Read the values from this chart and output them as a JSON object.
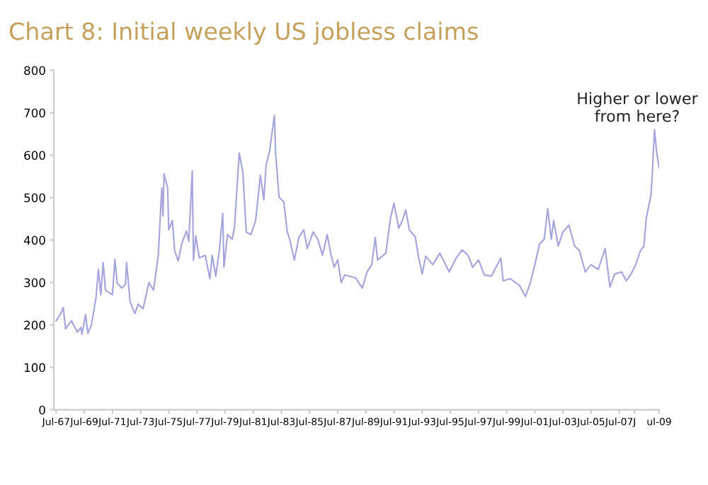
{
  "chart_data": {
    "type": "line",
    "title": "Chart 8: Initial weekly US jobless claims",
    "annotations": [
      "Higher or lower\nfrom here?"
    ],
    "x": [
      "1967-07",
      "1967-11",
      "1968-01",
      "1968-03",
      "1968-08",
      "1969-01",
      "1969-04",
      "1969-05",
      "1969-08",
      "1969-10",
      "1970-01",
      "1970-05",
      "1970-07",
      "1970-09",
      "1970-11",
      "1971-01",
      "1971-07",
      "1971-09",
      "1971-11",
      "1972-03",
      "1972-06",
      "1972-07",
      "1972-10",
      "1973-02",
      "1973-05",
      "1973-09",
      "1974-02",
      "1974-06",
      "1974-10",
      "1975-01",
      "1975-02",
      "1975-03",
      "1975-06",
      "1975-07",
      "1975-10",
      "1975-12",
      "1976-03",
      "1976-06",
      "1976-10",
      "1976-12",
      "1977-03",
      "1977-04",
      "1977-06",
      "1977-09",
      "1978-02",
      "1978-06",
      "1978-08",
      "1978-11",
      "1979-02",
      "1979-05",
      "1979-06",
      "1979-09",
      "1980-01",
      "1980-03",
      "1980-07",
      "1980-10",
      "1981-01",
      "1981-05",
      "1981-09",
      "1982-01",
      "1982-04",
      "1982-06",
      "1982-09",
      "1982-11",
      "1983-01",
      "1983-02",
      "1983-05",
      "1983-09",
      "1983-12",
      "1984-02",
      "1984-06",
      "1984-10",
      "1985-02",
      "1985-05",
      "1985-10",
      "1986-02",
      "1986-06",
      "1986-10",
      "1987-01",
      "1987-04",
      "1987-07",
      "1987-10",
      "1988-01",
      "1988-10",
      "1989-04",
      "1989-08",
      "1989-12",
      "1990-03",
      "1990-05",
      "1990-12",
      "1991-04",
      "1991-07",
      "1991-11",
      "1992-02",
      "1992-05",
      "1992-08",
      "1993-01",
      "1993-04",
      "1993-07",
      "1993-10",
      "1994-04",
      "1994-10",
      "1995-06",
      "1995-12",
      "1996-05",
      "1996-10",
      "1997-02",
      "1997-07",
      "1997-12",
      "1998-06",
      "1999-02",
      "1999-04",
      "1999-10",
      "2000-06",
      "2000-11",
      "2001-03",
      "2001-07",
      "2001-11",
      "2002-03",
      "2002-06",
      "2002-09",
      "2002-11",
      "2003-03",
      "2003-07",
      "2003-12",
      "2004-05",
      "2004-09",
      "2005-02",
      "2005-07",
      "2006-01",
      "2006-07",
      "2006-11",
      "2007-03",
      "2007-09",
      "2008-01",
      "2008-05",
      "2008-09",
      "2009-01",
      "2009-04",
      "2009-06",
      "2009-10",
      "2009-11",
      "2010-01",
      "2010-03",
      "2010-05"
    ],
    "series": [
      {
        "color": "#a7a7dc",
        "values": [
          210,
          227,
          241,
          191,
          210,
          183,
          194,
          178,
          224,
          180,
          200,
          265,
          331,
          271,
          347,
          282,
          271,
          355,
          298,
          287,
          296,
          347,
          254,
          227,
          249,
          238,
          300,
          282,
          364,
          523,
          457,
          556,
          523,
          424,
          446,
          375,
          351,
          391,
          421,
          397,
          563,
          353,
          410,
          358,
          364,
          309,
          364,
          315,
          375,
          463,
          336,
          413,
          402,
          430,
          605,
          561,
          419,
          413,
          446,
          553,
          495,
          578,
          611,
          654,
          693,
          605,
          501,
          490,
          419,
          402,
          353,
          408,
          424,
          380,
          419,
          402,
          364,
          413,
          369,
          336,
          353,
          300,
          318,
          311,
          287,
          325,
          342,
          406,
          353,
          369,
          452,
          487,
          428,
          446,
          471,
          424,
          408,
          358,
          320,
          362,
          342,
          369,
          325,
          358,
          377,
          364,
          336,
          353,
          318,
          315,
          358,
          304,
          309,
          293,
          267,
          298,
          342,
          391,
          402,
          474,
          402,
          446,
          386,
          419,
          435,
          386,
          375,
          325,
          342,
          331,
          380,
          289,
          320,
          325,
          304,
          320,
          342,
          375,
          386,
          452,
          506,
          550,
          660,
          605,
          570
        ]
      }
    ],
    "xlim": [
      "1967-05",
      "2010-05"
    ],
    "xticks": [
      {
        "value": "1967-07",
        "label": "Jul-67"
      },
      {
        "value": "1969-07",
        "label": "Jul-69"
      },
      {
        "value": "1971-07",
        "label": "Jul-71"
      },
      {
        "value": "1973-07",
        "label": "Jul-73"
      },
      {
        "value": "1975-07",
        "label": "Jul-75"
      },
      {
        "value": "1977-07",
        "label": "Jul-77"
      },
      {
        "value": "1979-07",
        "label": "Jul-79"
      },
      {
        "value": "1981-07",
        "label": "Jul-81"
      },
      {
        "value": "1983-07",
        "label": "Jul-83"
      },
      {
        "value": "1985-07",
        "label": "Jul-85"
      },
      {
        "value": "1987-07",
        "label": "Jul-87"
      },
      {
        "value": "1989-07",
        "label": "Jul-89"
      },
      {
        "value": "1991-07",
        "label": "Jul-91"
      },
      {
        "value": "1993-07",
        "label": "Jul-93"
      },
      {
        "value": "1995-07",
        "label": "Jul-95"
      },
      {
        "value": "1997-07",
        "label": "Jul-97"
      },
      {
        "value": "1999-07",
        "label": "Jul-99"
      },
      {
        "value": "2001-07",
        "label": "Jul-01"
      },
      {
        "value": "2003-07",
        "label": "Jul-03"
      },
      {
        "value": "2005-07",
        "label": "Jul-05"
      },
      {
        "value": "2007-07",
        "label": "Jul-07"
      },
      {
        "value": "2008-08",
        "label": "J"
      },
      {
        "value": "2010-05",
        "label": "ul-09"
      }
    ],
    "ylim": [
      0,
      800
    ],
    "yticks": [
      0,
      100,
      200,
      300,
      400,
      500,
      600,
      700,
      800
    ],
    "grid": false,
    "legend": false,
    "marker": "none",
    "line_style": "solid"
  }
}
